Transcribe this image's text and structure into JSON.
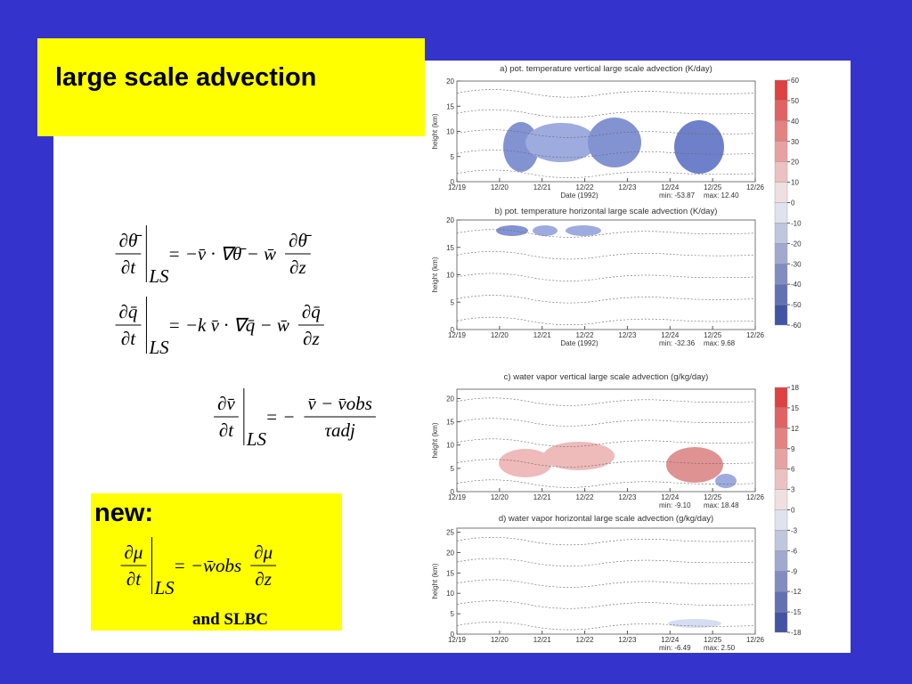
{
  "title": "large scale advection",
  "equations": [
    {
      "lhs_num": "∂θ̄",
      "lhs_den": "∂t",
      "sub": "LS",
      "rhs": "= −v̄ · ∇θ̄ − w̄",
      "rhs_num": "∂θ̄",
      "rhs_den": "∂z"
    },
    {
      "lhs_num": "∂q̄",
      "lhs_den": "∂t",
      "sub": "LS",
      "rhs": "= −k  v̄ · ∇q̄ − w̄",
      "rhs_num": "∂q̄",
      "rhs_den": "∂z"
    },
    {
      "lhs_num": "∂v̄",
      "lhs_den": "∂t",
      "sub": "LS",
      "rhs": "= −",
      "rhs_num": "v̄ − v̄obs",
      "rhs_den": "τadj"
    }
  ],
  "new_box": {
    "label": "new:",
    "equation": {
      "lhs_num": "∂μ",
      "lhs_den": "∂t",
      "sub": "LS",
      "rhs": "= −w̄obs",
      "rhs_num": "∂μ",
      "rhs_den": "∂z"
    },
    "note": "and SLBC"
  },
  "panels": [
    {
      "title": "a) pot. temperature vertical large scale advection (K/day)",
      "ylabel": "height (km)",
      "yticks": [
        0,
        5,
        10,
        15,
        20
      ],
      "ylim": [
        0,
        20
      ],
      "xticks": [
        "12/19",
        "12/20",
        "12/21",
        "12/22",
        "12/23",
        "12/24",
        "12/25",
        "12/26"
      ],
      "xlabel": "Date (1992)",
      "min": "min: -53.87",
      "max": "max: 12.40"
    },
    {
      "title": "b) pot. temperature horizontal large scale advection (K/day)",
      "ylabel": "height (km)",
      "yticks": [
        0,
        5,
        10,
        15,
        20
      ],
      "ylim": [
        0,
        20
      ],
      "xticks": [
        "12/19",
        "12/20",
        "12/21",
        "12/22",
        "12/23",
        "12/24",
        "12/25",
        "12/26"
      ],
      "xlabel": "Date (1992)",
      "min": "min: -32.36",
      "max": "max: 9.68"
    },
    {
      "title": "c) water vapor vertical large scale advection (g/kg/day)",
      "ylabel": "height (km)",
      "yticks": [
        0,
        5,
        10,
        15,
        20
      ],
      "ylim": [
        0,
        22
      ],
      "xticks": [
        "12/19",
        "12/20",
        "12/21",
        "12/22",
        "12/23",
        "12/24",
        "12/25",
        "12/26"
      ],
      "min": "min: -9.10",
      "max": "max: 18.48"
    },
    {
      "title": "d) water vapor horizontal large scale advection (g/kg/day)",
      "ylabel": "height (km)",
      "yticks": [
        0,
        5,
        10,
        15,
        20,
        25
      ],
      "ylim": [
        0,
        26
      ],
      "xticks": [
        "12/19",
        "12/20",
        "12/21",
        "12/22",
        "12/23",
        "12/24",
        "12/25",
        "12/26"
      ],
      "min": "min: -6.49",
      "max": "max: 2.50"
    }
  ],
  "colorbars": [
    {
      "ticks": [
        60,
        50,
        40,
        30,
        20,
        10,
        0,
        -10,
        -20,
        -30,
        -40,
        -50,
        -60
      ]
    },
    {
      "ticks": [
        18,
        15,
        12,
        9,
        6,
        3,
        0,
        -3,
        -6,
        -9,
        -12,
        -15,
        -18
      ]
    }
  ]
}
